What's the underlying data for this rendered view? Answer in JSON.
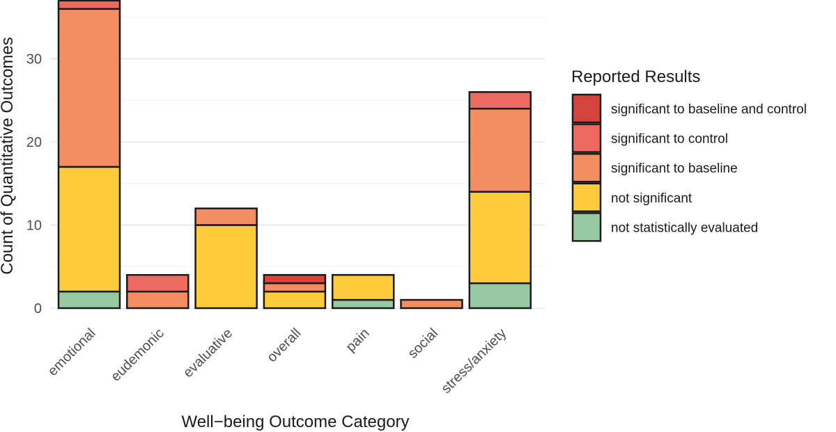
{
  "chart_data": {
    "type": "bar",
    "stacked": true,
    "xlabel": "Well−being Outcome Category",
    "ylabel": "Count of Quantitative Outcomes",
    "categories": [
      "emotional",
      "eudemonic",
      "evaluative",
      "overall",
      "pain",
      "social",
      "stress/anxiety"
    ],
    "y_ticks": [
      0,
      10,
      20,
      30
    ],
    "ylim": [
      0,
      37
    ],
    "grid": true,
    "legend": {
      "title": "Reported Results",
      "placement": "right"
    },
    "series": [
      {
        "name": "not statistically evaluated",
        "color": "#97c9a3",
        "values": [
          2,
          0,
          0,
          0,
          1,
          0,
          3
        ]
      },
      {
        "name": "not significant",
        "color": "#fdcb3c",
        "values": [
          15,
          0,
          10,
          2,
          3,
          0,
          11
        ]
      },
      {
        "name": "significant to baseline",
        "color": "#f48e62",
        "values": [
          19,
          2,
          2,
          1,
          0,
          1,
          10
        ]
      },
      {
        "name": "significant to control",
        "color": "#ed6a60",
        "values": [
          1,
          2,
          0,
          0,
          0,
          0,
          2
        ]
      },
      {
        "name": "significant to baseline and control",
        "color": "#d6433c",
        "values": [
          0,
          0,
          0,
          1,
          0,
          0,
          0
        ]
      }
    ],
    "legend_order": [
      "significant to baseline and control",
      "significant to control",
      "significant to baseline",
      "not significant",
      "not statistically evaluated"
    ]
  }
}
